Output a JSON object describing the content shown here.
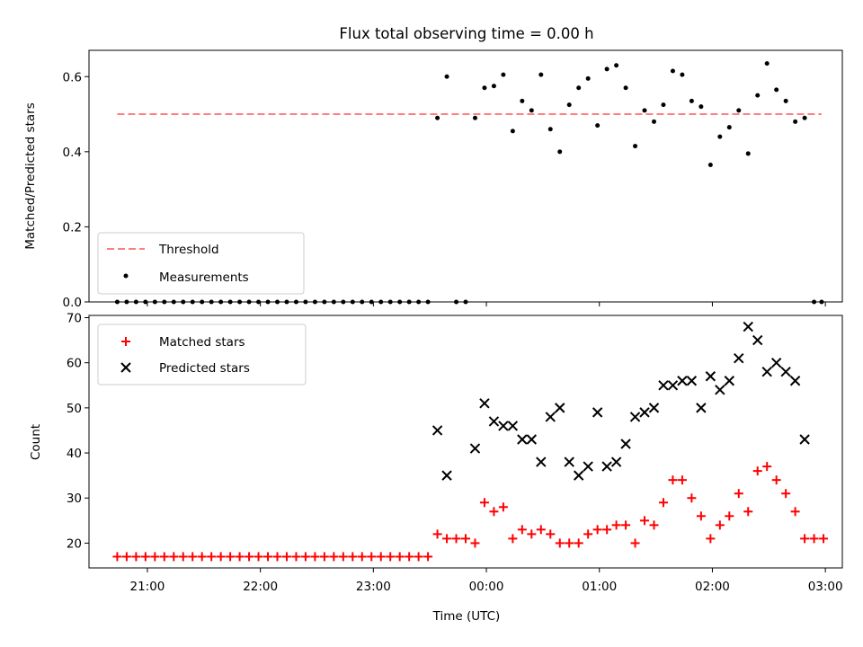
{
  "chart_data": [
    {
      "type": "scatter",
      "title": "Flux total observing time = 0.00 h",
      "ylabel": "Matched/Predicted stars",
      "ylim": [
        0.0,
        0.67
      ],
      "yticks": [
        0.0,
        0.2,
        0.4,
        0.6
      ],
      "ytick_labels": [
        "0.0",
        "0.2",
        "0.4",
        "0.6"
      ],
      "legend": {
        "position": "lower-left",
        "entries": [
          "Threshold",
          "Measurements"
        ]
      },
      "threshold": {
        "name": "Threshold",
        "value": 0.5,
        "x_start": "20:44",
        "x_end": "02:58",
        "color": "#ff7f7f",
        "style": "dashed"
      },
      "series": [
        {
          "name": "Measurements",
          "color": "#000000",
          "marker": "dot",
          "x": [
            "20:44",
            "20:49",
            "20:54",
            "20:59",
            "21:04",
            "21:09",
            "21:14",
            "21:19",
            "21:24",
            "21:29",
            "21:34",
            "21:39",
            "21:44",
            "21:49",
            "21:54",
            "21:59",
            "22:04",
            "22:09",
            "22:14",
            "22:19",
            "22:24",
            "22:29",
            "22:34",
            "22:39",
            "22:44",
            "22:49",
            "22:54",
            "22:59",
            "23:04",
            "23:09",
            "23:14",
            "23:19",
            "23:24",
            "23:29",
            "23:34",
            "23:39",
            "23:44",
            "23:49",
            "23:54",
            "23:59",
            "00:04",
            "00:09",
            "00:14",
            "00:19",
            "00:24",
            "00:29",
            "00:34",
            "00:39",
            "00:44",
            "00:49",
            "00:54",
            "00:59",
            "01:04",
            "01:09",
            "01:14",
            "01:19",
            "01:24",
            "01:29",
            "01:34",
            "01:39",
            "01:44",
            "01:49",
            "01:54",
            "01:59",
            "02:04",
            "02:09",
            "02:14",
            "02:19",
            "02:24",
            "02:29",
            "02:34",
            "02:39",
            "02:44",
            "02:49",
            "02:54",
            "02:58"
          ],
          "y": [
            0,
            0,
            0,
            0,
            0,
            0,
            0,
            0,
            0,
            0,
            0,
            0,
            0,
            0,
            0,
            0,
            0,
            0,
            0,
            0,
            0,
            0,
            0,
            0,
            0,
            0,
            0,
            0,
            0,
            0,
            0,
            0,
            0,
            0,
            0.49,
            0.6,
            0,
            0,
            0.49,
            0.57,
            0.575,
            0.605,
            0.455,
            0.535,
            0.51,
            0.605,
            0.46,
            0.4,
            0.525,
            0.57,
            0.595,
            0.47,
            0.62,
            0.63,
            0.57,
            0.415,
            0.51,
            0.48,
            0.525,
            0.615,
            0.605,
            0.535,
            0.52,
            0.365,
            0.44,
            0.465,
            0.51,
            0.395,
            0.55,
            0.635,
            0.565,
            0.535,
            0.48,
            0.49,
            0,
            0
          ]
        }
      ]
    },
    {
      "type": "scatter",
      "xlabel": "Time (UTC)",
      "ylabel": "Count",
      "ylim": [
        14.5,
        70.5
      ],
      "yticks": [
        20,
        30,
        40,
        50,
        60,
        70
      ],
      "ytick_labels": [
        "20",
        "30",
        "40",
        "50",
        "60",
        "70"
      ],
      "xlim": [
        "20:29",
        "03:09"
      ],
      "xticks": [
        "21:00",
        "22:00",
        "23:00",
        "00:00",
        "01:00",
        "02:00",
        "03:00"
      ],
      "xtick_labels": [
        "21:00",
        "22:00",
        "23:00",
        "00:00",
        "01:00",
        "02:00",
        "03:00"
      ],
      "legend": {
        "position": "top-left",
        "entries": [
          "Matched stars",
          "Predicted stars"
        ]
      },
      "series": [
        {
          "name": "Matched stars",
          "color": "#ff0000",
          "marker": "plus",
          "x": [
            "20:44",
            "20:49",
            "20:54",
            "20:59",
            "21:04",
            "21:09",
            "21:14",
            "21:19",
            "21:24",
            "21:29",
            "21:34",
            "21:39",
            "21:44",
            "21:49",
            "21:54",
            "21:59",
            "22:04",
            "22:09",
            "22:14",
            "22:19",
            "22:24",
            "22:29",
            "22:34",
            "22:39",
            "22:44",
            "22:49",
            "22:54",
            "22:59",
            "23:04",
            "23:09",
            "23:14",
            "23:19",
            "23:24",
            "23:29",
            "23:34",
            "23:39",
            "23:44",
            "23:49",
            "23:54",
            "23:59",
            "00:04",
            "00:09",
            "00:14",
            "00:19",
            "00:24",
            "00:29",
            "00:34",
            "00:39",
            "00:44",
            "00:49",
            "00:54",
            "00:59",
            "01:04",
            "01:09",
            "01:14",
            "01:19",
            "01:24",
            "01:29",
            "01:34",
            "01:39",
            "01:44",
            "01:49",
            "01:54",
            "01:59",
            "02:04",
            "02:09",
            "02:14",
            "02:19",
            "02:24",
            "02:29",
            "02:34",
            "02:39",
            "02:44",
            "02:49",
            "02:54",
            "02:59"
          ],
          "y": [
            17,
            17,
            17,
            17,
            17,
            17,
            17,
            17,
            17,
            17,
            17,
            17,
            17,
            17,
            17,
            17,
            17,
            17,
            17,
            17,
            17,
            17,
            17,
            17,
            17,
            17,
            17,
            17,
            17,
            17,
            17,
            17,
            17,
            17,
            22,
            21,
            21,
            21,
            20,
            29,
            27,
            28,
            21,
            23,
            22,
            23,
            22,
            20,
            20,
            20,
            22,
            23,
            23,
            24,
            24,
            20,
            25,
            24,
            29,
            34,
            34,
            30,
            26,
            21,
            24,
            26,
            31,
            27,
            36,
            37,
            34,
            31,
            27,
            21,
            21,
            21
          ]
        },
        {
          "name": "Predicted stars",
          "color": "#000000",
          "marker": "x",
          "x": [
            "23:34",
            "23:39",
            "23:54",
            "23:59",
            "00:04",
            "00:09",
            "00:14",
            "00:19",
            "00:24",
            "00:29",
            "00:34",
            "00:39",
            "00:44",
            "00:49",
            "00:54",
            "00:59",
            "01:04",
            "01:09",
            "01:14",
            "01:19",
            "01:24",
            "01:29",
            "01:34",
            "01:39",
            "01:44",
            "01:49",
            "01:54",
            "01:59",
            "02:04",
            "02:09",
            "02:14",
            "02:19",
            "02:24",
            "02:29",
            "02:34",
            "02:39",
            "02:44",
            "02:49"
          ],
          "y": [
            45,
            35,
            41,
            51,
            47,
            46,
            46,
            43,
            43,
            38,
            48,
            50,
            38,
            35,
            37,
            49,
            37,
            38,
            42,
            48,
            49,
            50,
            55,
            55,
            56,
            56,
            50,
            57,
            54,
            56,
            61,
            68,
            65,
            58,
            60,
            58,
            56,
            43
          ]
        }
      ]
    }
  ]
}
